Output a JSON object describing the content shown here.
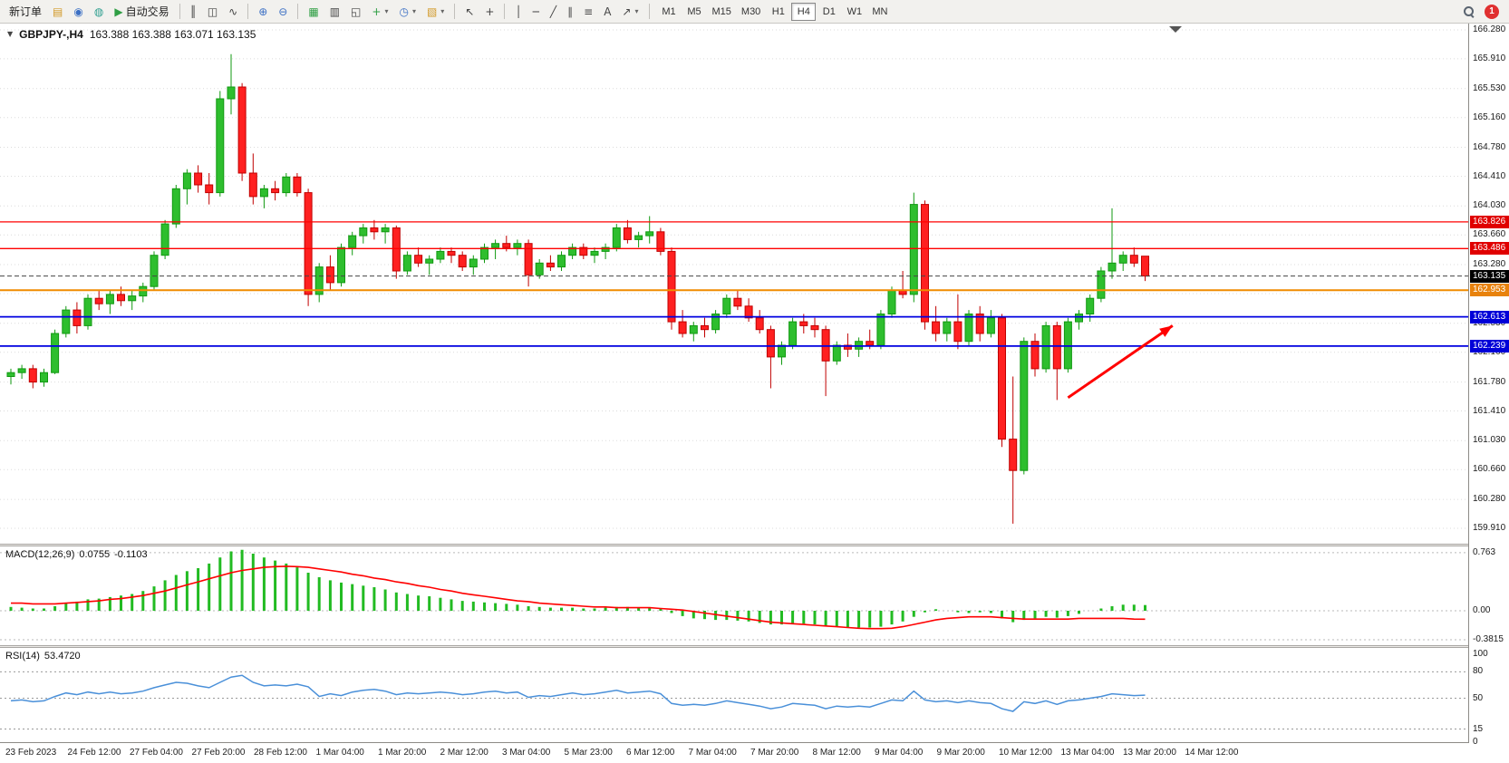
{
  "toolbar": {
    "new_order_label": "新订单",
    "autotrading_label": "自动交易",
    "timeframes": [
      "M1",
      "M5",
      "M15",
      "M30",
      "H1",
      "H4",
      "D1",
      "W1",
      "MN"
    ],
    "active_timeframe": "H4",
    "notification_count": "1"
  },
  "icons": {
    "chart_dropdown": "▼",
    "files": "▤",
    "community": "◉",
    "support": "◍",
    "play": "▶",
    "bar_chart": "║",
    "candlestick_chart": "◫",
    "line_chart": "∿",
    "zoom_in": "⊕",
    "zoom_out": "⊖",
    "tile_windows": "▦",
    "cascade_windows": "▥",
    "arrange_windows": "◱",
    "indicators_add": "+",
    "periods": "◷",
    "templates": "▧",
    "cursor": "↖",
    "crosshair": "+",
    "vertical_line": "│",
    "horizontal_line": "─",
    "trendline": "╱",
    "channel": "∥",
    "fibonacci": "≡",
    "text_tool": "A",
    "arrows_tool": "↗",
    "dropdown": "▾"
  },
  "header": {
    "symbol_period": "GBPJPY-,H4",
    "ohlc": "163.388 163.388 163.071 163.135"
  },
  "macd": {
    "name": "MACD(12,26,9)",
    "value_main": "0.0755",
    "value_signal": "-0.1103",
    "axis": [
      {
        "label": "0.763",
        "value": 0.763
      },
      {
        "label": "0.00",
        "value": 0
      },
      {
        "label": "-0.3815",
        "value": -0.3815
      }
    ]
  },
  "rsi": {
    "name": "RSI(14)",
    "value": "53.4720",
    "axis": [
      {
        "label": "100",
        "value": 100
      },
      {
        "label": "80",
        "value": 80
      },
      {
        "label": "50",
        "value": 50
      },
      {
        "label": "15",
        "value": 15
      },
      {
        "label": "0",
        "value": 0
      }
    ],
    "levels": [
      80,
      50,
      15
    ]
  },
  "chart_data": {
    "type": "candlestick",
    "symbol": "GBPJPY",
    "timeframe": "H4",
    "price_ticks": [
      "166.280",
      "165.910",
      "165.530",
      "165.160",
      "164.780",
      "164.410",
      "164.030",
      "163.660",
      "163.280",
      "162.910",
      "162.530",
      "162.160",
      "161.780",
      "161.410",
      "161.030",
      "160.660",
      "160.280",
      "159.910"
    ],
    "time_labels": [
      "23 Feb 2023",
      "24 Feb 12:00",
      "27 Feb 04:00",
      "27 Feb 20:00",
      "28 Feb 12:00",
      "1 Mar 04:00",
      "1 Mar 20:00",
      "2 Mar 12:00",
      "3 Mar 04:00",
      "5 Mar 23:00",
      "6 Mar 12:00",
      "7 Mar 04:00",
      "7 Mar 20:00",
      "8 Mar 12:00",
      "9 Mar 04:00",
      "9 Mar 20:00",
      "10 Mar 12:00",
      "13 Mar 04:00",
      "13 Mar 20:00",
      "14 Mar 12:00"
    ],
    "hlines": [
      {
        "price": 163.826,
        "label": "163.826",
        "color": "#FF0000",
        "tag_color": "#E00000",
        "width": 1.3
      },
      {
        "price": 163.486,
        "label": "163.486",
        "color": "#FF0000",
        "tag_color": "#E00000",
        "width": 1.3
      },
      {
        "price": 162.953,
        "label": "162.953",
        "color": "#F08C00",
        "tag_color": "#E8820C",
        "width": 2
      },
      {
        "price": 162.613,
        "label": "162.613",
        "color": "#0000E0",
        "tag_color": "#0000D8",
        "width": 1.8
      },
      {
        "price": 162.239,
        "label": "162.239",
        "color": "#0000E0",
        "tag_color": "#0000D8",
        "width": 1.8
      }
    ],
    "current_price": {
      "price": 163.135,
      "label": "163.135",
      "tag_color": "#000000"
    },
    "arrow": {
      "from_bar": 96,
      "from_price": 161.58,
      "to_bar": 105.5,
      "to_price": 162.5,
      "color": "#FF0000"
    },
    "colors": {
      "up": "#2EBE2E",
      "up_border": "#119911",
      "down": "#FF2020",
      "down_border": "#C00000",
      "grid": "#DBDBDB",
      "macd_hist": "#22BB22",
      "macd_signal": "#FF0000",
      "rsi_line": "#4A90D9",
      "current_line": "#444444"
    },
    "candles": [
      [
        161.85,
        161.95,
        161.75,
        161.9
      ],
      [
        161.9,
        162.0,
        161.82,
        161.95
      ],
      [
        161.95,
        162.0,
        161.7,
        161.78
      ],
      [
        161.78,
        161.95,
        161.72,
        161.9
      ],
      [
        161.9,
        162.45,
        161.88,
        162.4
      ],
      [
        162.4,
        162.75,
        162.35,
        162.7
      ],
      [
        162.7,
        162.8,
        162.4,
        162.5
      ],
      [
        162.5,
        162.9,
        162.45,
        162.85
      ],
      [
        162.85,
        162.95,
        162.7,
        162.78
      ],
      [
        162.78,
        162.95,
        162.65,
        162.9
      ],
      [
        162.9,
        163.0,
        162.75,
        162.82
      ],
      [
        162.82,
        162.95,
        162.7,
        162.88
      ],
      [
        162.88,
        163.05,
        162.8,
        163.0
      ],
      [
        163.0,
        163.45,
        162.95,
        163.4
      ],
      [
        163.4,
        163.85,
        163.35,
        163.8
      ],
      [
        163.8,
        164.3,
        163.75,
        164.25
      ],
      [
        164.25,
        164.5,
        164.05,
        164.45
      ],
      [
        164.45,
        164.55,
        164.2,
        164.3
      ],
      [
        164.3,
        164.45,
        164.05,
        164.2
      ],
      [
        164.2,
        165.5,
        164.15,
        165.4
      ],
      [
        165.4,
        165.97,
        165.2,
        165.55
      ],
      [
        165.55,
        165.6,
        164.35,
        164.45
      ],
      [
        164.45,
        164.7,
        164.05,
        164.15
      ],
      [
        164.15,
        164.3,
        164.0,
        164.25
      ],
      [
        164.25,
        164.35,
        164.1,
        164.2
      ],
      [
        164.2,
        164.45,
        164.15,
        164.4
      ],
      [
        164.4,
        164.45,
        164.15,
        164.2
      ],
      [
        164.2,
        164.25,
        162.75,
        162.9
      ],
      [
        162.9,
        163.3,
        162.8,
        163.25
      ],
      [
        163.25,
        163.4,
        162.95,
        163.05
      ],
      [
        163.05,
        163.55,
        163.0,
        163.5
      ],
      [
        163.5,
        163.7,
        163.4,
        163.65
      ],
      [
        163.65,
        163.8,
        163.55,
        163.75
      ],
      [
        163.75,
        163.85,
        163.6,
        163.7
      ],
      [
        163.7,
        163.8,
        163.55,
        163.75
      ],
      [
        163.75,
        163.78,
        163.1,
        163.2
      ],
      [
        163.2,
        163.45,
        163.15,
        163.4
      ],
      [
        163.4,
        163.5,
        163.25,
        163.3
      ],
      [
        163.3,
        163.4,
        163.15,
        163.35
      ],
      [
        163.35,
        163.5,
        163.3,
        163.45
      ],
      [
        163.45,
        163.5,
        163.3,
        163.4
      ],
      [
        163.4,
        163.45,
        163.2,
        163.25
      ],
      [
        163.25,
        163.4,
        163.15,
        163.35
      ],
      [
        163.35,
        163.55,
        163.3,
        163.5
      ],
      [
        163.5,
        163.6,
        163.35,
        163.55
      ],
      [
        163.55,
        163.65,
        163.45,
        163.5
      ],
      [
        163.5,
        163.6,
        163.4,
        163.55
      ],
      [
        163.55,
        163.6,
        163.0,
        163.15
      ],
      [
        163.15,
        163.35,
        163.1,
        163.3
      ],
      [
        163.3,
        163.4,
        163.2,
        163.25
      ],
      [
        163.25,
        163.45,
        163.2,
        163.4
      ],
      [
        163.4,
        163.55,
        163.35,
        163.5
      ],
      [
        163.5,
        163.55,
        163.35,
        163.4
      ],
      [
        163.4,
        163.5,
        163.3,
        163.45
      ],
      [
        163.45,
        163.55,
        163.35,
        163.5
      ],
      [
        163.5,
        163.8,
        163.45,
        163.75
      ],
      [
        163.75,
        163.85,
        163.55,
        163.6
      ],
      [
        163.6,
        163.7,
        163.5,
        163.65
      ],
      [
        163.65,
        163.9,
        163.55,
        163.7
      ],
      [
        163.7,
        163.75,
        163.4,
        163.45
      ],
      [
        163.45,
        163.5,
        162.45,
        162.55
      ],
      [
        162.55,
        162.7,
        162.35,
        162.4
      ],
      [
        162.4,
        162.55,
        162.3,
        162.5
      ],
      [
        162.5,
        162.6,
        162.35,
        162.45
      ],
      [
        162.45,
        162.7,
        162.4,
        162.65
      ],
      [
        162.65,
        162.9,
        162.6,
        162.85
      ],
      [
        162.85,
        162.95,
        162.7,
        162.75
      ],
      [
        162.75,
        162.85,
        162.55,
        162.6
      ],
      [
        162.6,
        162.7,
        162.4,
        162.45
      ],
      [
        162.45,
        162.5,
        161.7,
        162.1
      ],
      [
        162.1,
        162.3,
        162.0,
        162.25
      ],
      [
        162.25,
        162.6,
        162.2,
        162.55
      ],
      [
        162.55,
        162.65,
        162.4,
        162.5
      ],
      [
        162.5,
        162.6,
        162.35,
        162.45
      ],
      [
        162.45,
        162.5,
        161.6,
        162.05
      ],
      [
        162.05,
        162.3,
        162.0,
        162.25
      ],
      [
        162.25,
        162.4,
        162.1,
        162.2
      ],
      [
        162.2,
        162.35,
        162.1,
        162.3
      ],
      [
        162.3,
        162.45,
        162.2,
        162.25
      ],
      [
        162.25,
        162.7,
        162.2,
        162.65
      ],
      [
        162.65,
        163.0,
        162.6,
        162.95
      ],
      [
        162.95,
        163.2,
        162.85,
        162.9
      ],
      [
        162.9,
        164.2,
        162.8,
        164.05
      ],
      [
        164.05,
        164.1,
        162.45,
        162.55
      ],
      [
        162.55,
        162.75,
        162.3,
        162.4
      ],
      [
        162.4,
        162.6,
        162.3,
        162.55
      ],
      [
        162.55,
        162.9,
        162.2,
        162.3
      ],
      [
        162.3,
        162.7,
        162.25,
        162.65
      ],
      [
        162.65,
        162.75,
        162.3,
        162.4
      ],
      [
        162.4,
        162.7,
        162.35,
        162.6
      ],
      [
        162.6,
        162.65,
        160.95,
        161.05
      ],
      [
        161.05,
        161.85,
        159.97,
        160.65
      ],
      [
        160.65,
        162.35,
        160.6,
        162.3
      ],
      [
        162.3,
        162.4,
        161.85,
        161.95
      ],
      [
        161.95,
        162.55,
        161.9,
        162.5
      ],
      [
        162.5,
        162.55,
        161.55,
        161.95
      ],
      [
        161.95,
        162.6,
        161.9,
        162.55
      ],
      [
        162.55,
        162.7,
        162.45,
        162.65
      ],
      [
        162.65,
        162.9,
        162.55,
        162.85
      ],
      [
        162.85,
        163.25,
        162.8,
        163.2
      ],
      [
        163.2,
        164.0,
        163.1,
        163.3
      ],
      [
        163.3,
        163.45,
        163.2,
        163.4
      ],
      [
        163.4,
        163.5,
        163.25,
        163.3
      ],
      [
        163.388,
        163.388,
        163.071,
        163.135
      ]
    ],
    "macd_hist": [
      0.05,
      0.04,
      0.03,
      0.03,
      0.06,
      0.1,
      0.12,
      0.15,
      0.16,
      0.18,
      0.2,
      0.22,
      0.26,
      0.32,
      0.4,
      0.47,
      0.52,
      0.56,
      0.62,
      0.7,
      0.78,
      0.8,
      0.75,
      0.7,
      0.66,
      0.62,
      0.57,
      0.5,
      0.44,
      0.4,
      0.37,
      0.35,
      0.33,
      0.31,
      0.28,
      0.24,
      0.22,
      0.2,
      0.19,
      0.17,
      0.15,
      0.13,
      0.12,
      0.11,
      0.1,
      0.09,
      0.08,
      0.06,
      0.05,
      0.04,
      0.04,
      0.04,
      0.03,
      0.03,
      0.04,
      0.05,
      0.05,
      0.04,
      0.04,
      0.03,
      -0.03,
      -0.07,
      -0.1,
      -0.11,
      -0.12,
      -0.12,
      -0.13,
      -0.14,
      -0.16,
      -0.18,
      -0.18,
      -0.17,
      -0.17,
      -0.18,
      -0.2,
      -0.21,
      -0.22,
      -0.22,
      -0.22,
      -0.21,
      -0.18,
      -0.14,
      -0.08,
      -0.02,
      0.02,
      0.0,
      -0.02,
      -0.03,
      -0.02,
      -0.03,
      -0.1,
      -0.15,
      -0.12,
      -0.1,
      -0.08,
      -0.09,
      -0.07,
      -0.04,
      0.0,
      0.03,
      0.06,
      0.08,
      0.08,
      0.0755
    ],
    "macd_signal": [
      0.1,
      0.1,
      0.09,
      0.09,
      0.09,
      0.1,
      0.11,
      0.12,
      0.13,
      0.15,
      0.16,
      0.18,
      0.2,
      0.23,
      0.26,
      0.3,
      0.34,
      0.38,
      0.42,
      0.46,
      0.5,
      0.53,
      0.55,
      0.57,
      0.58,
      0.585,
      0.58,
      0.57,
      0.55,
      0.53,
      0.51,
      0.48,
      0.46,
      0.43,
      0.41,
      0.38,
      0.36,
      0.33,
      0.31,
      0.28,
      0.26,
      0.23,
      0.21,
      0.19,
      0.17,
      0.15,
      0.13,
      0.12,
      0.1,
      0.09,
      0.08,
      0.07,
      0.06,
      0.05,
      0.05,
      0.04,
      0.04,
      0.04,
      0.04,
      0.03,
      0.02,
      0.01,
      -0.01,
      -0.03,
      -0.05,
      -0.07,
      -0.09,
      -0.11,
      -0.13,
      -0.15,
      -0.16,
      -0.17,
      -0.18,
      -0.19,
      -0.2,
      -0.21,
      -0.22,
      -0.23,
      -0.235,
      -0.235,
      -0.23,
      -0.21,
      -0.18,
      -0.15,
      -0.12,
      -0.1,
      -0.09,
      -0.08,
      -0.08,
      -0.08,
      -0.09,
      -0.1,
      -0.11,
      -0.11,
      -0.11,
      -0.11,
      -0.11,
      -0.1,
      -0.1,
      -0.1,
      -0.1,
      -0.1,
      -0.11,
      -0.1103
    ],
    "rsi_values": [
      47,
      48,
      46,
      47,
      52,
      56,
      54,
      57,
      55,
      57,
      55,
      56,
      58,
      62,
      65,
      68,
      67,
      64,
      62,
      68,
      74,
      76,
      68,
      64,
      65,
      64,
      66,
      63,
      52,
      55,
      53,
      57,
      59,
      60,
      58,
      54,
      56,
      55,
      56,
      57,
      56,
      54,
      55,
      57,
      58,
      56,
      57,
      51,
      53,
      52,
      54,
      56,
      54,
      55,
      57,
      59,
      56,
      57,
      58,
      55,
      44,
      42,
      43,
      42,
      44,
      47,
      45,
      43,
      41,
      38,
      40,
      44,
      43,
      42,
      38,
      41,
      40,
      41,
      40,
      44,
      48,
      47,
      58,
      48,
      46,
      47,
      45,
      47,
      45,
      44,
      38,
      35,
      46,
      44,
      47,
      43,
      47,
      48,
      50,
      52,
      55,
      54,
      53,
      53.47
    ]
  }
}
